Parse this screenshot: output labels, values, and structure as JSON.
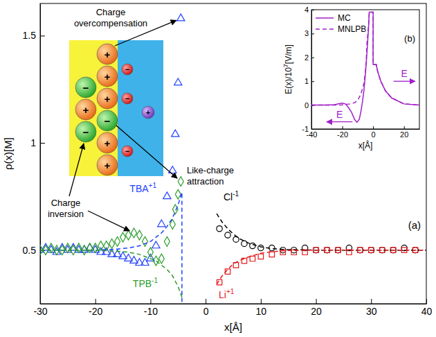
{
  "chart_data": [
    {
      "type": "scatter",
      "panel": "(a)",
      "xlabel": "x[Å]",
      "ylabel": "ρ(x)[M]",
      "xlim": [
        -30,
        40
      ],
      "ylim": [
        0.25,
        1.65
      ],
      "xticks": [
        -30,
        -20,
        -10,
        0,
        10,
        20,
        30,
        40
      ],
      "yticks": [
        0.5,
        1,
        1.5
      ],
      "series": [
        {
          "name": "TBA",
          "charge": "+1",
          "type": "scatter",
          "marker": "triangle",
          "color": "#2040ff",
          "x": [
            -30,
            -29,
            -28,
            -27,
            -26,
            -25,
            -24,
            -23,
            -22,
            -21,
            -20,
            -19,
            -18,
            -17,
            -16,
            -15,
            -14,
            -13,
            -12,
            -11,
            -10,
            -9,
            -8,
            -7,
            -6,
            -5.5,
            -5,
            -4.5
          ],
          "values": [
            0.5,
            0.51,
            0.5,
            0.49,
            0.51,
            0.5,
            0.51,
            0.5,
            0.5,
            0.51,
            0.5,
            0.49,
            0.49,
            0.48,
            0.48,
            0.47,
            0.46,
            0.45,
            0.44,
            0.44,
            0.46,
            0.52,
            0.62,
            0.75,
            0.87,
            1.04,
            1.28,
            1.58
          ]
        },
        {
          "name": "TPB",
          "charge": "-1",
          "type": "scatter",
          "marker": "diamond",
          "color": "#2a9d2a",
          "x": [
            -30,
            -29,
            -28,
            -27,
            -26,
            -25,
            -24,
            -23,
            -22,
            -21,
            -20,
            -19,
            -18,
            -17,
            -16,
            -15,
            -14,
            -13,
            -12,
            -11,
            -10,
            -9,
            -8,
            -7,
            -6,
            -5.5,
            -5,
            -4.5
          ],
          "values": [
            0.5,
            0.5,
            0.51,
            0.5,
            0.5,
            0.51,
            0.5,
            0.51,
            0.5,
            0.51,
            0.51,
            0.52,
            0.52,
            0.53,
            0.54,
            0.56,
            0.57,
            0.58,
            0.57,
            0.54,
            0.49,
            0.45,
            0.46,
            0.54,
            0.62,
            0.69,
            0.76,
            0.82
          ]
        },
        {
          "name": "Cl",
          "charge": "-1",
          "type": "scatter",
          "marker": "circle",
          "color": "#000000",
          "x": [
            2.5,
            4,
            5.5,
            7,
            8.5,
            10,
            12,
            14,
            16,
            18,
            20,
            22,
            24,
            26,
            28,
            30,
            32,
            34,
            36,
            38
          ],
          "values": [
            0.6,
            0.57,
            0.55,
            0.53,
            0.52,
            0.51,
            0.51,
            0.5,
            0.5,
            0.51,
            0.5,
            0.5,
            0.5,
            0.51,
            0.5,
            0.5,
            0.5,
            0.5,
            0.51,
            0.5
          ]
        },
        {
          "name": "Li",
          "charge": "+1",
          "type": "scatter",
          "marker": "square",
          "color": "#e41a1c",
          "x": [
            2.5,
            4,
            5.5,
            7,
            8.5,
            10,
            12,
            14,
            16,
            18,
            20,
            22,
            24,
            26,
            28,
            30,
            32,
            34,
            36,
            38
          ],
          "values": [
            0.35,
            0.4,
            0.43,
            0.45,
            0.46,
            0.47,
            0.48,
            0.49,
            0.49,
            0.49,
            0.5,
            0.5,
            0.5,
            0.49,
            0.5,
            0.5,
            0.5,
            0.5,
            0.5,
            0.5
          ]
        },
        {
          "type": "line",
          "line_style": "dashed",
          "color": "#2040ff",
          "x": [
            -30,
            -20,
            -16,
            -14,
            -12,
            -10,
            -9,
            -8,
            -7,
            -6,
            -5,
            -4.3,
            -4.3
          ],
          "values": [
            0.5,
            0.5,
            0.505,
            0.51,
            0.52,
            0.54,
            0.56,
            0.58,
            0.61,
            0.65,
            0.71,
            0.77,
            0.25
          ]
        },
        {
          "type": "line",
          "line_style": "dashed",
          "color": "#2a9d2a",
          "x": [
            -30,
            -20,
            -16,
            -14,
            -12,
            -10,
            -9,
            -8,
            -7,
            -6,
            -5,
            -4.3
          ],
          "values": [
            0.5,
            0.5,
            0.495,
            0.49,
            0.48,
            0.46,
            0.45,
            0.43,
            0.41,
            0.38,
            0.33,
            0.28
          ]
        },
        {
          "type": "line",
          "line_style": "dashed",
          "color": "#000000",
          "x": [
            2,
            3,
            4,
            5,
            6,
            8,
            10,
            12,
            15,
            20,
            40
          ],
          "values": [
            0.67,
            0.63,
            0.6,
            0.575,
            0.555,
            0.53,
            0.515,
            0.507,
            0.502,
            0.5,
            0.5
          ]
        },
        {
          "type": "line",
          "line_style": "dashed",
          "color": "#e41a1c",
          "x": [
            2,
            3,
            4,
            5,
            6,
            8,
            10,
            12,
            15,
            20,
            40
          ],
          "values": [
            0.34,
            0.38,
            0.41,
            0.435,
            0.45,
            0.47,
            0.485,
            0.493,
            0.498,
            0.5,
            0.5
          ]
        }
      ],
      "annotations": [
        {
          "text": [
            "Charge",
            "overcompensation"
          ]
        },
        {
          "text": [
            "Like-charge",
            "attraction"
          ]
        },
        {
          "text": [
            "Charge",
            "inversion"
          ]
        }
      ],
      "schematic": {
        "plus": "+",
        "minus": "−"
      }
    },
    {
      "type": "line",
      "panel": "(b)",
      "xlabel": "x[Å]",
      "ylabel": [
        {
          "text": "E(x)/10"
        },
        {
          "text": "7",
          "sup": true
        },
        {
          "text": "[V/m]"
        }
      ],
      "xlim": [
        -40,
        30
      ],
      "ylim": [
        -1,
        4
      ],
      "xticks": [
        -40,
        -20,
        0,
        20
      ],
      "yticks": [
        -1,
        0,
        1,
        2,
        3,
        4
      ],
      "legend": "upper left",
      "series": [
        {
          "name": "MC",
          "type": "line",
          "line_style": "solid",
          "color": "#a020c8",
          "x": [
            -40,
            -30,
            -25,
            -22,
            -20,
            -18,
            -16,
            -14,
            -12,
            -10.5,
            -9,
            -8,
            -7,
            -6,
            -5,
            -4,
            -3,
            -2.5,
            0,
            0,
            2,
            3,
            5,
            8,
            12,
            20,
            30
          ],
          "values": [
            0,
            0,
            0.02,
            0.06,
            0.08,
            0.05,
            -0.1,
            -0.3,
            -0.6,
            -0.72,
            -0.6,
            -0.3,
            0.1,
            0.6,
            1.3,
            2.2,
            3.2,
            3.9,
            3.9,
            1.7,
            1.7,
            1.4,
            1,
            0.6,
            0.3,
            0.05,
            0
          ]
        },
        {
          "name": "MNLPB",
          "type": "line",
          "line_style": "dashed",
          "color": "#a020c8",
          "x": [
            -40,
            -25,
            -20,
            -15,
            -12,
            -10,
            -8,
            -6,
            -5,
            -4.5,
            -4,
            -3,
            -2.5,
            0,
            0,
            2,
            3,
            5,
            8,
            12,
            20,
            30
          ],
          "values": [
            0,
            0,
            0.01,
            0.05,
            0.1,
            0.2,
            0.45,
            0.9,
            1.4,
            1.8,
            2.6,
            3.3,
            3.9,
            3.9,
            1.7,
            1.7,
            1.4,
            1,
            0.6,
            0.3,
            0.05,
            0
          ]
        }
      ],
      "arrow_labels": [
        "E",
        "E"
      ]
    }
  ]
}
